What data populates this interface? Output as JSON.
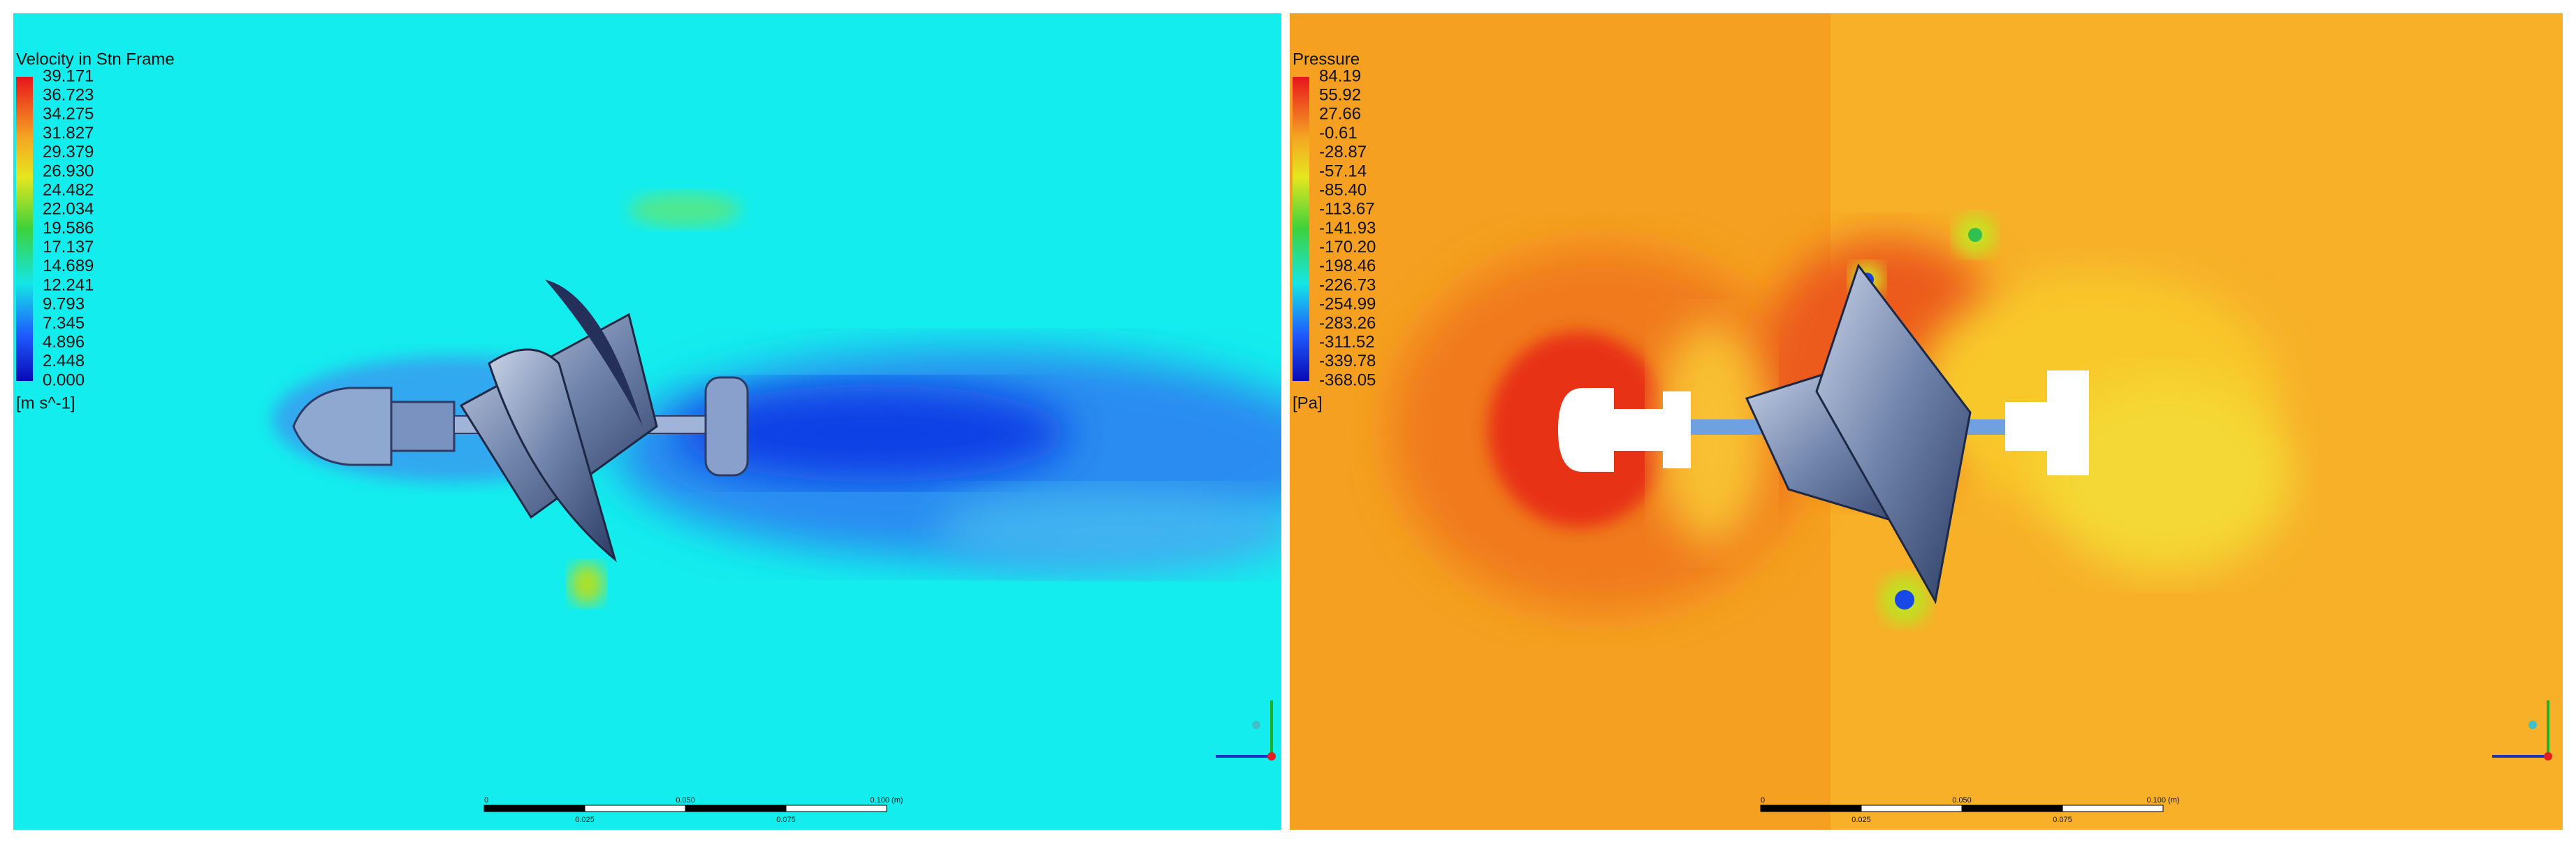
{
  "panels": [
    {
      "legend": {
        "title": "Velocity in Stn Frame",
        "values": [
          "39.171",
          "36.723",
          "34.275",
          "31.827",
          "29.379",
          "26.930",
          "24.482",
          "22.034",
          "19.586",
          "17.137",
          "14.689",
          "12.241",
          "9.793",
          "7.345",
          "4.896",
          "2.448",
          "0.000"
        ],
        "unit": "[m s^-1]"
      },
      "scale_bar": {
        "top_labels": [
          "0",
          "0.050",
          "0.100 (m)"
        ],
        "bottom_labels": [
          "0.025",
          "0.075"
        ]
      }
    },
    {
      "legend": {
        "title": "Pressure",
        "values": [
          "84.19",
          "55.92",
          "27.66",
          "-0.61",
          "-28.87",
          "-57.14",
          "-85.40",
          "-113.67",
          "-141.93",
          "-170.20",
          "-198.46",
          "-226.73",
          "-254.99",
          "-283.26",
          "-311.52",
          "-339.78",
          "-368.05"
        ],
        "unit": "[Pa]"
      },
      "scale_bar": {
        "top_labels": [
          "0",
          "0.050",
          "0.100 (m)"
        ],
        "bottom_labels": [
          "0.025",
          "0.075"
        ]
      }
    }
  ]
}
